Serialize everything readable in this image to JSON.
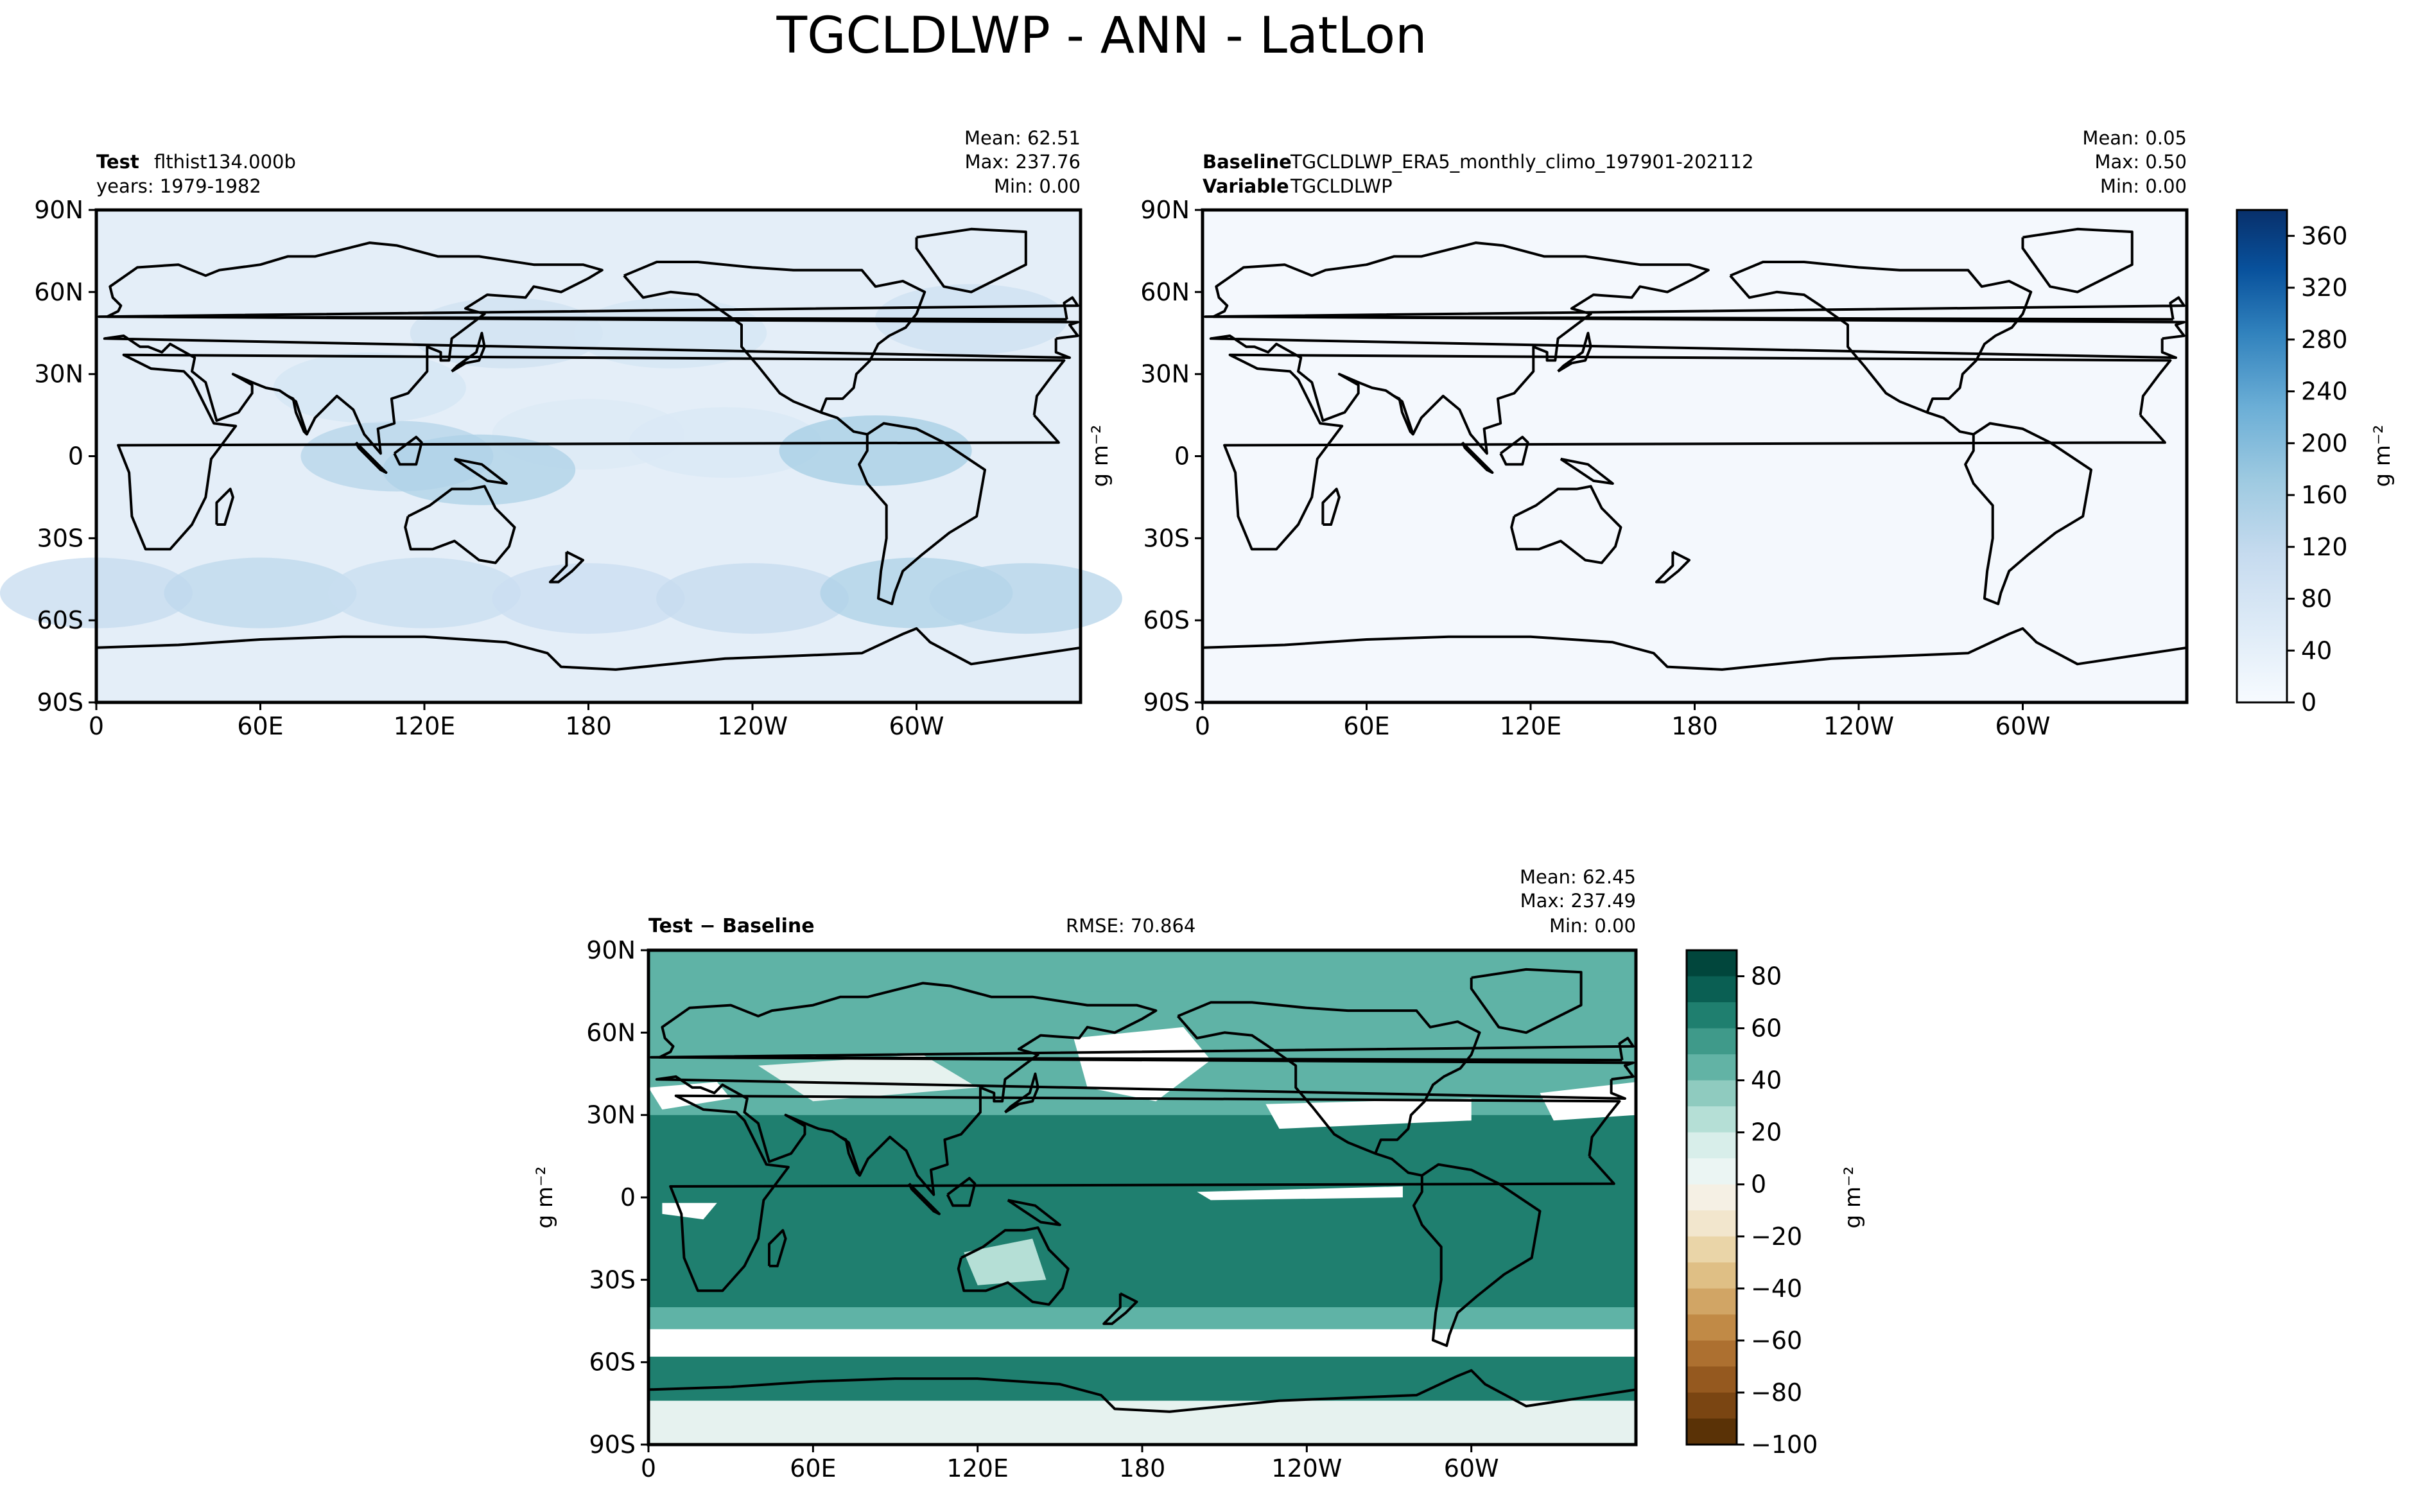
{
  "figure": {
    "title": "TGCLDLWP - ANN - LatLon"
  },
  "chart_data": [
    {
      "type": "heatmap",
      "panel": "test",
      "label_bold": "Test",
      "label_text": "flthist134.000b",
      "sub_label": "years: 1979-1982",
      "stats": {
        "mean": "Mean: 62.51",
        "max": "Max: 237.76",
        "min": "Min:  0.00"
      },
      "x_ticks": [
        "0",
        "60E",
        "120E",
        "180",
        "120W",
        "60W"
      ],
      "y_ticks": [
        "90N",
        "60N",
        "30N",
        "0",
        "30S",
        "60S",
        "90S"
      ],
      "xlim": [
        0,
        360
      ],
      "ylim": [
        -90,
        90
      ],
      "colormap": "Blues",
      "field_features": [
        {
          "lon": 0,
          "lat": -50,
          "value": 110
        },
        {
          "lon": 60,
          "lat": -50,
          "value": 120
        },
        {
          "lon": 120,
          "lat": -50,
          "value": 105
        },
        {
          "lon": 180,
          "lat": -52,
          "value": 100
        },
        {
          "lon": 240,
          "lat": -52,
          "value": 110
        },
        {
          "lon": 300,
          "lat": -50,
          "value": 140
        },
        {
          "lon": 340,
          "lat": -52,
          "value": 130
        },
        {
          "lon": 150,
          "lat": 45,
          "value": 90
        },
        {
          "lon": 210,
          "lat": 45,
          "value": 80
        },
        {
          "lon": 320,
          "lat": 50,
          "value": 95
        },
        {
          "lon": 180,
          "lat": 8,
          "value": 65
        },
        {
          "lon": 230,
          "lat": 5,
          "value": 70
        },
        {
          "lon": 110,
          "lat": 0,
          "value": 130
        },
        {
          "lon": 140,
          "lat": -5,
          "value": 140
        },
        {
          "lon": 285,
          "lat": 2,
          "value": 150
        },
        {
          "lon": 100,
          "lat": 25,
          "value": 80
        }
      ]
    },
    {
      "type": "heatmap",
      "panel": "baseline",
      "label_bold": "Baseline",
      "label_text": "TGCLDLWP_ERA5_monthly_climo_197901-202112",
      "label2_bold": "Variable",
      "label2_text": "TGCLDLWP",
      "stats": {
        "mean": "Mean:  0.05",
        "max": "Max:  0.50",
        "min": "Min:  0.00"
      },
      "x_ticks": [
        "0",
        "60E",
        "120E",
        "180",
        "120W",
        "60W"
      ],
      "y_ticks": [
        "90N",
        "60N",
        "30N",
        "0",
        "30S",
        "60S",
        "90S"
      ],
      "xlim": [
        0,
        360
      ],
      "ylim": [
        -90,
        90
      ],
      "colormap": "Blues",
      "ylabel": "g m⁻²",
      "colorbar": {
        "label": "g m⁻²",
        "ticks": [
          "0",
          "40",
          "80",
          "120",
          "160",
          "200",
          "240",
          "280",
          "320",
          "360"
        ],
        "range": [
          0,
          380
        ]
      }
    },
    {
      "type": "heatmap",
      "panel": "difference",
      "label_bold": "Test − Baseline",
      "rmse": "RMSE: 70.864",
      "stats": {
        "mean": "Mean: 62.45",
        "max": "Max: 237.49",
        "min": "Min:  0.00"
      },
      "x_ticks": [
        "0",
        "60E",
        "120E",
        "180",
        "120W",
        "60W"
      ],
      "y_ticks": [
        "90N",
        "60N",
        "30N",
        "0",
        "30S",
        "60S",
        "90S"
      ],
      "xlim": [
        0,
        360
      ],
      "ylim": [
        -90,
        90
      ],
      "colormap": "BrBG",
      "ylabel": "g m⁻²",
      "colorbar": {
        "label": "g m⁻²",
        "ticks": [
          "80",
          "60",
          "40",
          "20",
          "0",
          "−20",
          "−40",
          "−60",
          "−80",
          "−100"
        ],
        "range": [
          -100,
          90
        ]
      }
    }
  ],
  "colors": {
    "blues_light": "#f4f8fd",
    "blues_dark": "#08306b",
    "teal_dark": "#01463c",
    "brown_dark": "#5a3206",
    "axis": "#000000"
  }
}
